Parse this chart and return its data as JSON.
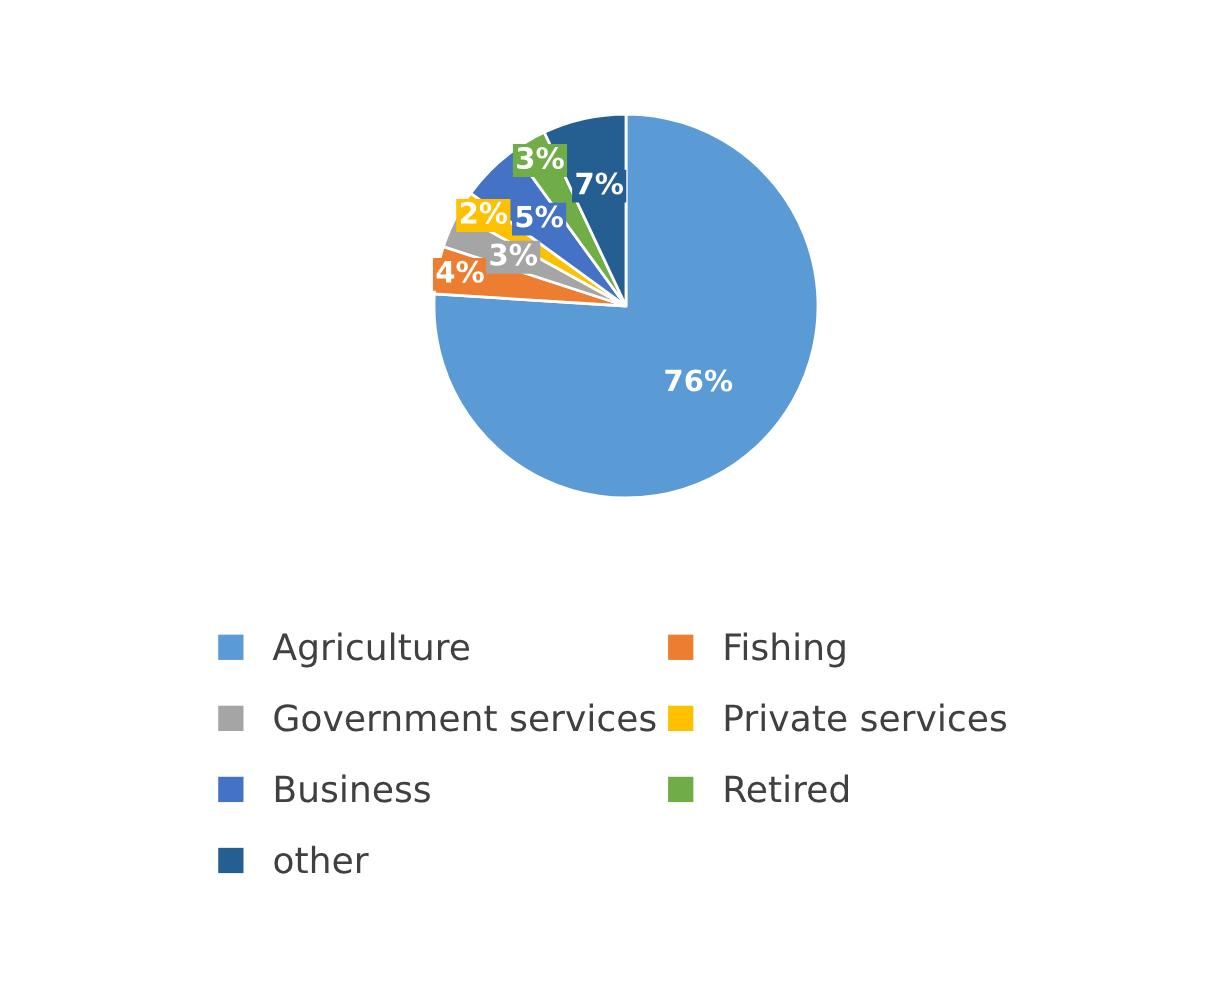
{
  "chart_data": {
    "type": "pie",
    "categories": [
      "Agriculture",
      "Fishing",
      "Government services",
      "Private services",
      "Business",
      "Retired",
      "other"
    ],
    "values": [
      76,
      4,
      3,
      2,
      5,
      3,
      7
    ],
    "value_labels": [
      "76%",
      "4%",
      "3%",
      "2%",
      "5%",
      "3%",
      "7%"
    ],
    "colors": [
      "#5b9bd5",
      "#ed7d31",
      "#a5a5a5",
      "#ffc000",
      "#4472c4",
      "#70ad47",
      "#255e91"
    ],
    "legend": "bottom"
  }
}
